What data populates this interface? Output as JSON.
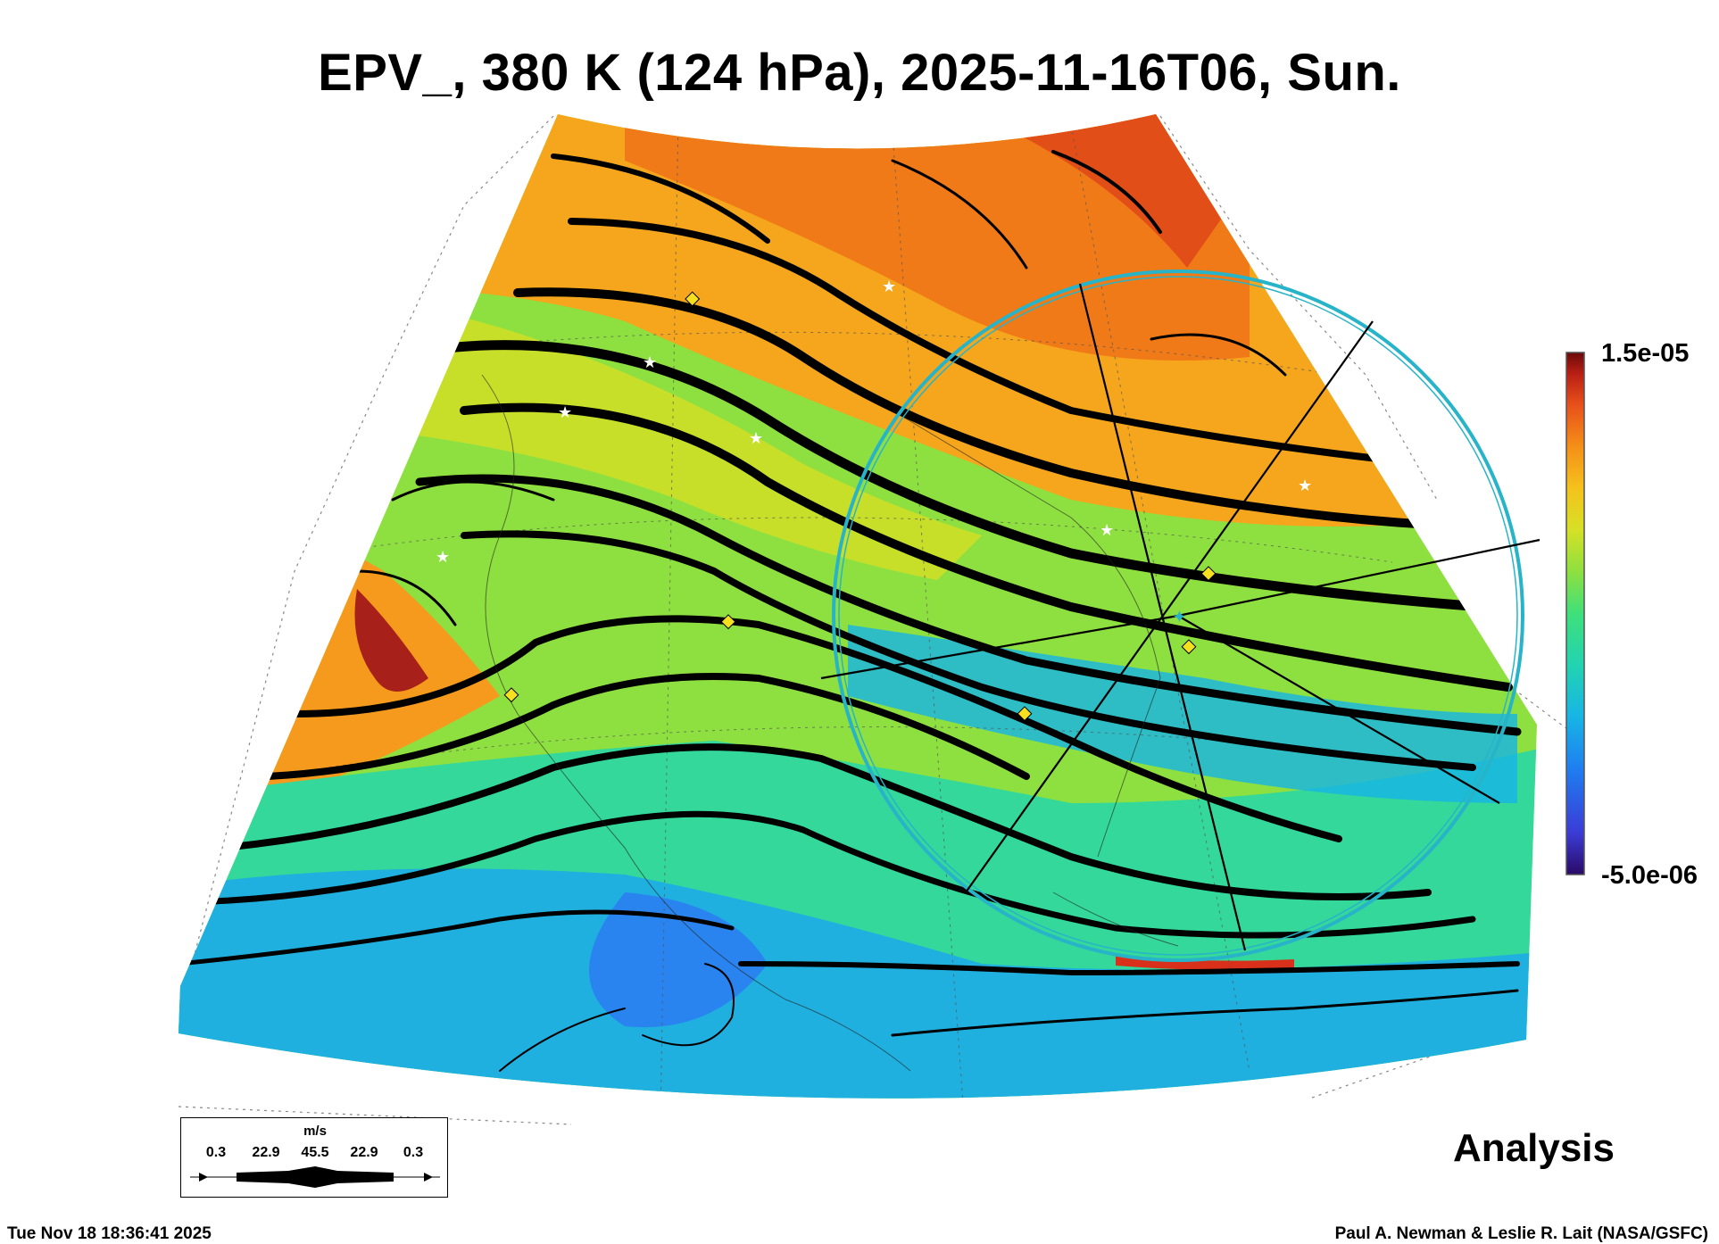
{
  "title": "EPV_, 380 K (124 hPa), 2025-11-16T06, Sun.",
  "colorbar": {
    "max_label": "1.5e-05",
    "min_label": "-5.0e-06",
    "colors": [
      "#2a0a66",
      "#3b3cd6",
      "#1f7df0",
      "#17b4e6",
      "#22d3b2",
      "#3fe07a",
      "#8ee040",
      "#d6e026",
      "#f5c21c",
      "#f58f18",
      "#e8501a",
      "#b81f14",
      "#6a0a0a"
    ]
  },
  "legend": {
    "unit": "m/s",
    "values": [
      "0.3",
      "22.9",
      "45.5",
      "22.9",
      "0.3"
    ]
  },
  "label_analysis": "Analysis",
  "footer": {
    "timestamp": "Tue Nov 18 18:36:41 2025",
    "credit": "Paul A. Newman & Leslie R. Lait (NASA/GSFC)"
  },
  "colors": {
    "streamline": "#000000",
    "circle": "#28b4c8",
    "marker_diamond": "#f5e020",
    "marker_star": "#ffffff"
  }
}
